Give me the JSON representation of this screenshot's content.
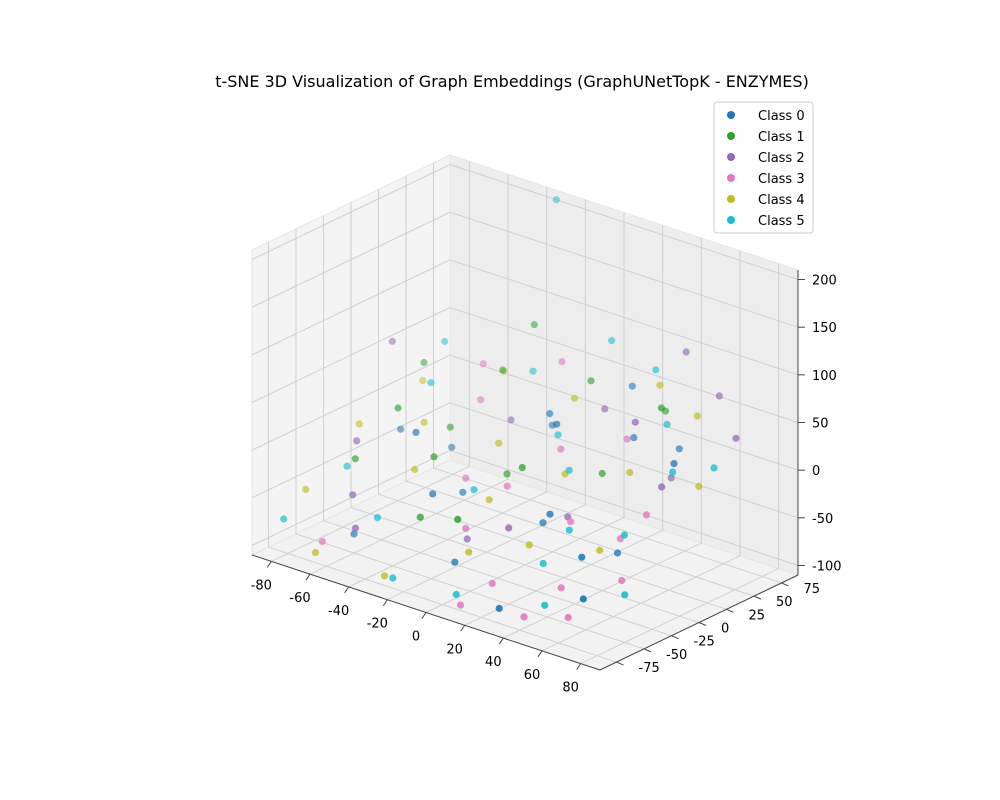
{
  "chart_data": {
    "type": "scatter",
    "dimensions": 3,
    "title": "t-SNE 3D Visualization of Graph Embeddings (GraphUNetTopK - ENZYMES)",
    "xlabel": "",
    "ylabel": "",
    "zlabel": "",
    "xlim": [
      -90,
      90
    ],
    "ylim": [
      -90,
      90
    ],
    "zlim": [
      -110,
      210
    ],
    "x_ticks": [
      "-80",
      "-60",
      "-40",
      "-20",
      "0",
      "20",
      "40",
      "60",
      "80"
    ],
    "y_ticks": [
      "-75",
      "-50",
      "-25",
      "0",
      "25",
      "50",
      "75"
    ],
    "z_ticks": [
      "-100",
      "-50",
      "0",
      "50",
      "100",
      "150",
      "200"
    ],
    "grid": true,
    "legend_position": "upper-right",
    "series": [
      {
        "name": "Class 0",
        "color": "#1f77b4",
        "points": [
          [
            -70,
            10,
            -20
          ],
          [
            -55,
            30,
            -40
          ],
          [
            -45,
            -20,
            10
          ],
          [
            -35,
            5,
            -60
          ],
          [
            -25,
            -40,
            -30
          ],
          [
            -10,
            40,
            20
          ],
          [
            -5,
            -55,
            -80
          ],
          [
            5,
            20,
            30
          ],
          [
            15,
            -10,
            -50
          ],
          [
            25,
            55,
            10
          ],
          [
            30,
            -30,
            -20
          ],
          [
            40,
            70,
            0
          ],
          [
            45,
            5,
            -70
          ],
          [
            55,
            -45,
            -40
          ],
          [
            60,
            30,
            20
          ],
          [
            70,
            -70,
            -60
          ],
          [
            -60,
            -50,
            -90
          ],
          [
            35,
            -85,
            -85
          ],
          [
            10,
            80,
            40
          ],
          [
            -20,
            60,
            -10
          ]
        ]
      },
      {
        "name": "Class 1",
        "color": "#2ca02c",
        "points": [
          [
            -75,
            40,
            30
          ],
          [
            -60,
            -10,
            20
          ],
          [
            -50,
            20,
            -10
          ],
          [
            -40,
            50,
            40
          ],
          [
            -30,
            -30,
            0
          ],
          [
            -15,
            10,
            -30
          ],
          [
            0,
            60,
            50
          ],
          [
            10,
            -20,
            10
          ],
          [
            20,
            35,
            -20
          ],
          [
            30,
            75,
            30
          ],
          [
            -65,
            -40,
            -20
          ],
          [
            -20,
            -60,
            -40
          ],
          [
            45,
            45,
            60
          ],
          [
            5,
            -70,
            -20
          ],
          [
            -35,
            70,
            80
          ]
        ]
      },
      {
        "name": "Class 2",
        "color": "#9467bd",
        "points": [
          [
            -80,
            20,
            60
          ],
          [
            -55,
            -60,
            -40
          ],
          [
            -30,
            40,
            0
          ],
          [
            -10,
            -35,
            -70
          ],
          [
            10,
            55,
            30
          ],
          [
            25,
            -5,
            -40
          ],
          [
            40,
            30,
            50
          ],
          [
            55,
            80,
            60
          ],
          [
            65,
            10,
            10
          ],
          [
            75,
            60,
            40
          ],
          [
            -45,
            -75,
            -60
          ],
          [
            20,
            -50,
            -30
          ],
          [
            50,
            45,
            -10
          ],
          [
            35,
            85,
            90
          ],
          [
            -70,
            -30,
            -10
          ]
        ]
      },
      {
        "name": "Class 3",
        "color": "#e377c2",
        "points": [
          [
            -65,
            -70,
            -90
          ],
          [
            -40,
            30,
            20
          ],
          [
            -25,
            -10,
            -30
          ],
          [
            -5,
            -45,
            -50
          ],
          [
            10,
            15,
            10
          ],
          [
            20,
            -65,
            -80
          ],
          [
            35,
            -20,
            -30
          ],
          [
            50,
            -55,
            -70
          ],
          [
            60,
            5,
            -20
          ],
          [
            70,
            -35,
            -60
          ],
          [
            45,
            -80,
            -90
          ],
          [
            30,
            40,
            20
          ],
          [
            -15,
            60,
            60
          ],
          [
            5,
            -25,
            -10
          ],
          [
            55,
            -10,
            -40
          ],
          [
            15,
            -85,
            -95
          ],
          [
            -50,
            50,
            40
          ],
          [
            65,
            -75,
            -80
          ]
        ]
      },
      {
        "name": "Class 4",
        "color": "#bcbd22",
        "points": [
          [
            -80,
            -10,
            -10
          ],
          [
            -70,
            30,
            20
          ],
          [
            -55,
            5,
            0
          ],
          [
            -40,
            -30,
            -20
          ],
          [
            -25,
            20,
            -10
          ],
          [
            -10,
            -15,
            -40
          ],
          [
            0,
            45,
            40
          ],
          [
            15,
            10,
            -10
          ],
          [
            25,
            -40,
            -50
          ],
          [
            40,
            25,
            0
          ],
          [
            55,
            60,
            50
          ],
          [
            70,
            35,
            0
          ],
          [
            -85,
            -50,
            -60
          ],
          [
            -60,
            -85,
            -90
          ],
          [
            -30,
            -75,
            -100
          ],
          [
            30,
            70,
            60
          ],
          [
            5,
            -60,
            -60
          ],
          [
            50,
            -20,
            -50
          ],
          [
            -45,
            60,
            30
          ]
        ]
      },
      {
        "name": "Class 5",
        "color": "#17becf",
        "points": [
          [
            -85,
            -70,
            -80
          ],
          [
            -75,
            -30,
            -40
          ],
          [
            -60,
            20,
            30
          ],
          [
            -45,
            -55,
            -60
          ],
          [
            -30,
            60,
            40
          ],
          [
            -15,
            -20,
            -30
          ],
          [
            0,
            30,
            10
          ],
          [
            10,
            -80,
            -90
          ],
          [
            20,
            5,
            0
          ],
          [
            35,
            -45,
            -60
          ],
          [
            45,
            50,
            40
          ],
          [
            60,
            -15,
            -30
          ],
          [
            75,
            40,
            20
          ],
          [
            80,
            -50,
            -60
          ],
          [
            -35,
            90,
            200
          ],
          [
            -20,
            -85,
            -90
          ],
          [
            25,
            75,
            70
          ],
          [
            50,
            -70,
            -80
          ],
          [
            65,
            20,
            20
          ],
          [
            -70,
            50,
            50
          ],
          [
            5,
            70,
            90
          ],
          [
            40,
            -30,
            -30
          ]
        ]
      }
    ]
  }
}
